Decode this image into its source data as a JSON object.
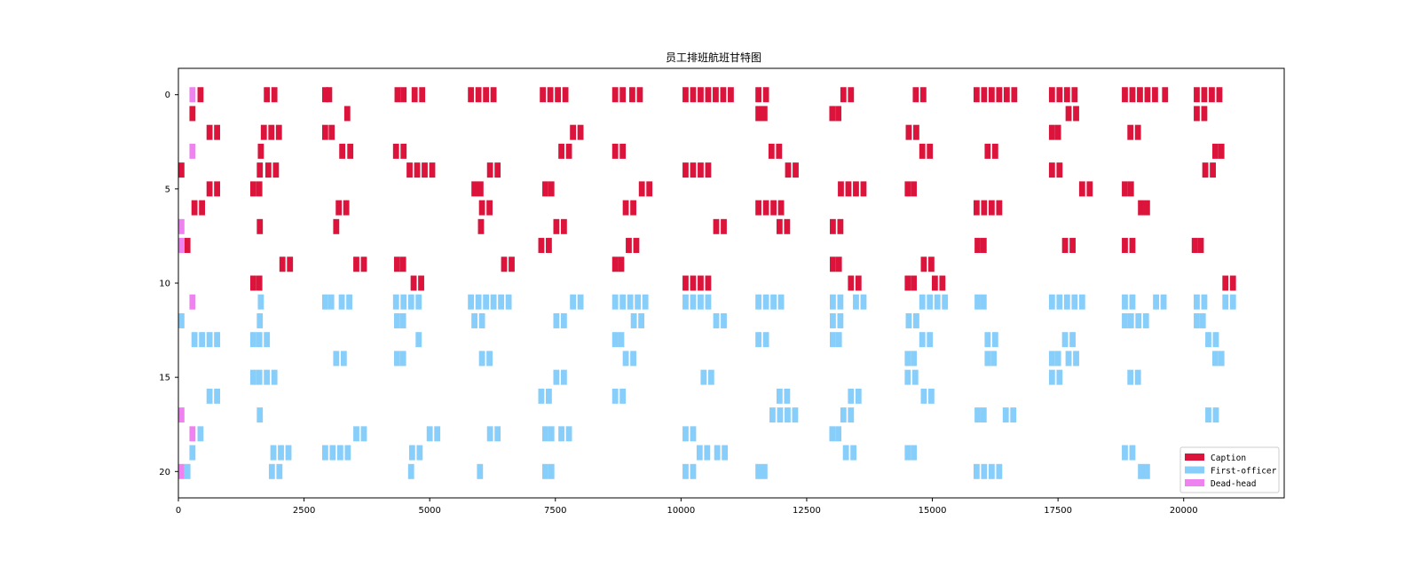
{
  "chart_data": {
    "type": "gantt",
    "title": "员工排班航班甘特图",
    "xlim": [
      0,
      22000
    ],
    "ylim": [
      21.4,
      -1.4
    ],
    "x_ticks": [
      0,
      2500,
      5000,
      7500,
      10000,
      12500,
      15000,
      17500,
      20000
    ],
    "y_ticks": [
      0,
      5,
      10,
      15,
      20
    ],
    "x_tick_labels": [
      "0",
      "2500",
      "5000",
      "7500",
      "10000",
      "12500",
      "15000",
      "17500",
      "20000"
    ],
    "y_tick_labels": [
      "0",
      "5",
      "10",
      "15",
      "20"
    ],
    "bar_width": 120,
    "bar_height": 0.8,
    "legend": {
      "position": "lower-right",
      "entries": [
        {
          "name": "Caption",
          "color": "#DC143C"
        },
        {
          "name": "First-officer",
          "color": "#87CEFA"
        },
        {
          "name": "Dead-head",
          "color": "#EE82EE"
        }
      ]
    },
    "series": [
      {
        "name": "Caption",
        "color": "#DC143C",
        "rows": [
          {
            "y": 0,
            "x": [
              380,
              1700,
              1850,
              2860,
              2940,
              4300,
              4420,
              4640,
              4790,
              5760,
              5910,
              6060,
              6210,
              7190,
              7340,
              7490,
              7640,
              8630,
              8780,
              8970,
              9120,
              10030,
              10180,
              10330,
              10480,
              10630,
              10780,
              10930,
              11480,
              11630,
              13170,
              13320,
              14610,
              14760,
              15820,
              15970,
              16120,
              16270,
              16420,
              16570,
              17320,
              17470,
              17620,
              17770,
              18770,
              18920,
              19070,
              19220,
              19370,
              19570,
              20200,
              20350,
              20500,
              20650
            ]
          },
          {
            "y": 1,
            "x": [
              220,
              3300,
              11480,
              11600,
              12950,
              13070,
              17650,
              17800,
              20200,
              20350
            ]
          },
          {
            "y": 2,
            "x": [
              560,
              710,
              1640,
              1790,
              1940,
              2860,
              2990,
              7790,
              7940,
              14470,
              14620,
              17320,
              17440,
              18880,
              19030
            ]
          },
          {
            "y": 3,
            "x": [
              1580,
              3200,
              3360,
              4270,
              4420,
              7560,
              7710,
              8630,
              8780,
              11740,
              11890,
              14740,
              14890,
              16040,
              16190,
              20570,
              20690
            ]
          },
          {
            "y": 4,
            "x": [
              0,
              1560,
              1730,
              1880,
              4540,
              4690,
              4840,
              4990,
              6140,
              6290,
              10030,
              10180,
              10330,
              10480,
              12070,
              12220,
              17320,
              17470,
              20370,
              20520
            ]
          },
          {
            "y": 5,
            "x": [
              560,
              710,
              1430,
              1550,
              5830,
              5950,
              7240,
              7360,
              9160,
              9310,
              13120,
              13270,
              13420,
              13570,
              14450,
              14570,
              17920,
              18070,
              18770,
              18890
            ]
          },
          {
            "y": 6,
            "x": [
              260,
              410,
              3130,
              3280,
              5980,
              6130,
              8840,
              8990,
              11480,
              11630,
              11780,
              11930,
              15820,
              15970,
              16120,
              16270,
              19090,
              19210
            ]
          },
          {
            "y": 7,
            "x": [
              1560,
              3080,
              5960,
              7460,
              7610,
              10640,
              10790,
              11900,
              12050,
              12960,
              13110
            ]
          },
          {
            "y": 8,
            "x": [
              120,
              7160,
              7310,
              8900,
              9050,
              15840,
              15960,
              17580,
              17730,
              18770,
              18920,
              20160,
              20280
            ]
          },
          {
            "y": 9,
            "x": [
              2010,
              2160,
              3480,
              3630,
              4290,
              4410,
              6420,
              6570,
              8630,
              8750,
              12960,
              13080,
              14770,
              14920
            ]
          },
          {
            "y": 10,
            "x": [
              1430,
              1550,
              4620,
              4770,
              10030,
              10180,
              10330,
              10480,
              13320,
              13470,
              14450,
              14570,
              14990,
              15140,
              20770,
              20920
            ]
          }
        ]
      },
      {
        "name": "First-officer",
        "color": "#87CEFA",
        "rows": [
          {
            "y": 11,
            "x": [
              1580,
              2860,
              2980,
              3190,
              3340,
              4270,
              4420,
              4570,
              4720,
              5760,
              5910,
              6060,
              6210,
              6360,
              6510,
              7790,
              7940,
              8630,
              8780,
              8930,
              9080,
              9230,
              10030,
              10180,
              10330,
              10480,
              11480,
              11630,
              11780,
              11930,
              12960,
              13110,
              13420,
              13570,
              14740,
              14890,
              15040,
              15190,
              15840,
              15960,
              17320,
              17470,
              17620,
              17770,
              17920,
              18770,
              18920,
              19390,
              19540,
              20200,
              20350,
              20770,
              20920
            ]
          },
          {
            "y": 12,
            "x": [
              0,
              1560,
              4290,
              4410,
              5830,
              5980,
              7460,
              7610,
              9000,
              9150,
              10640,
              10790,
              12960,
              13110,
              14470,
              14620,
              18770,
              18890,
              19040,
              19190,
              20200,
              20320
            ]
          },
          {
            "y": 13,
            "x": [
              260,
              410,
              560,
              710,
              1430,
              1550,
              1700,
              4720,
              8630,
              8750,
              11480,
              11630,
              12960,
              13080,
              14740,
              14890,
              16040,
              16190,
              17580,
              17730,
              20430,
              20580
            ]
          },
          {
            "y": 14,
            "x": [
              3080,
              3230,
              4290,
              4410,
              5980,
              6130,
              8840,
              8990,
              14450,
              14570,
              16040,
              16160,
              17320,
              17440,
              17650,
              17800,
              20570,
              20690
            ]
          },
          {
            "y": 15,
            "x": [
              1430,
              1550,
              1700,
              1850,
              7460,
              7610,
              10390,
              10540,
              14450,
              14600,
              17320,
              17470,
              18880,
              19030
            ]
          },
          {
            "y": 16,
            "x": [
              560,
              710,
              7160,
              7310,
              8630,
              8780,
              11900,
              12050,
              13320,
              13470,
              14770,
              14920
            ]
          },
          {
            "y": 17,
            "x": [
              1560,
              11760,
              11910,
              12060,
              12210,
              13170,
              13320,
              15840,
              15960,
              16400,
              16550,
              20430,
              20580
            ]
          },
          {
            "y": 18,
            "x": [
              380,
              3480,
              3630,
              4940,
              5090,
              6140,
              6290,
              7240,
              7360,
              7560,
              7710,
              10030,
              10180,
              12950,
              13070
            ]
          },
          {
            "y": 19,
            "x": [
              220,
              1830,
              1980,
              2130,
              2860,
              3010,
              3160,
              3310,
              4590,
              4740,
              10310,
              10460,
              10660,
              10810,
              13220,
              13370,
              14450,
              14570,
              18770,
              18920
            ]
          },
          {
            "y": 20,
            "x": [
              120,
              1800,
              1950,
              4570,
              5940,
              7240,
              7360,
              10030,
              10180,
              11480,
              11600,
              15820,
              15970,
              16120,
              16270,
              19090,
              19210
            ]
          }
        ]
      },
      {
        "name": "Dead-head",
        "color": "#EE82EE",
        "rows": [
          {
            "y": 0,
            "x": [
              220
            ]
          },
          {
            "y": 3,
            "x": [
              220
            ]
          },
          {
            "y": 7,
            "x": [
              0
            ]
          },
          {
            "y": 8,
            "x": [
              0
            ]
          },
          {
            "y": 11,
            "x": [
              220
            ]
          },
          {
            "y": 17,
            "x": [
              0
            ]
          },
          {
            "y": 18,
            "x": [
              220
            ]
          },
          {
            "y": 20,
            "x": [
              0
            ]
          }
        ]
      }
    ]
  }
}
